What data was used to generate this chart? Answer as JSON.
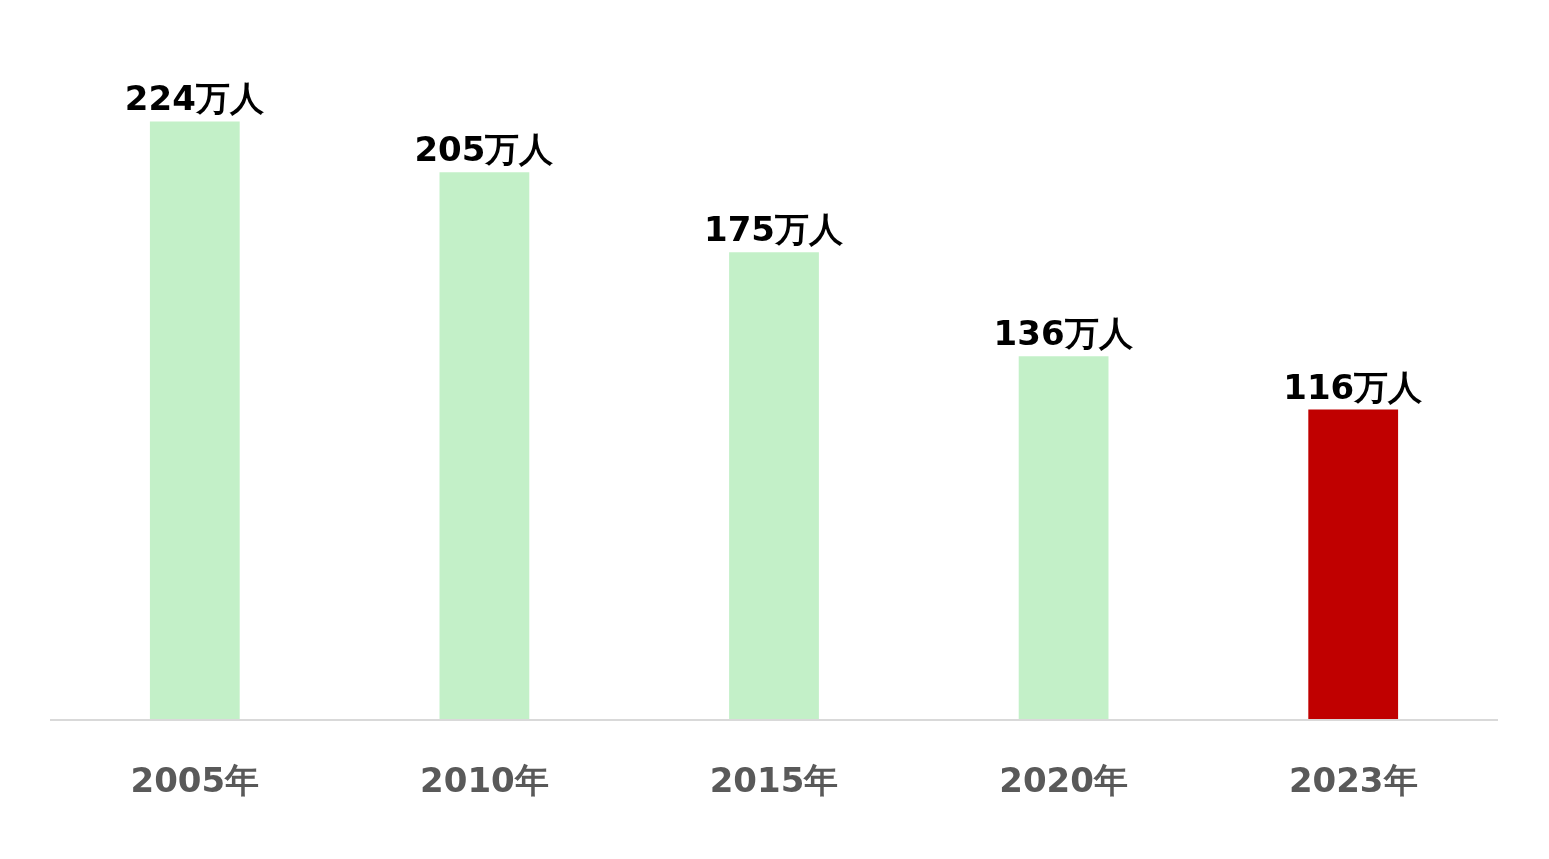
{
  "chart_data": {
    "type": "bar",
    "categories": [
      "2005年",
      "2010年",
      "2015年",
      "2020年",
      "2023年"
    ],
    "values": [
      224,
      205,
      175,
      136,
      116
    ],
    "value_labels": [
      "224万人",
      "205万人",
      "175万人",
      "136万人",
      "116万人"
    ],
    "colors": [
      "#c3f0c8",
      "#c3f0c8",
      "#c3f0c8",
      "#c3f0c8",
      "#c00000"
    ]
  }
}
